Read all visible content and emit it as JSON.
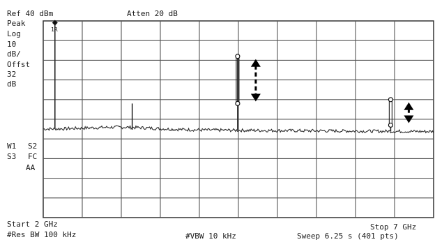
{
  "header": {
    "ref_level": "Ref 40 dBm",
    "attenuation": "Atten 20 dB"
  },
  "side_panel": {
    "detector": "Peak",
    "scale_type": "Log",
    "scale_value": "10",
    "scale_unit": "dB/",
    "offset_label": "Offst",
    "offset_value": "32",
    "offset_unit": "dB",
    "trace_w1": "W1",
    "trace_s2": "S2",
    "trace_s3": "S3",
    "trace_fc": "FC",
    "trace_aa": "AA"
  },
  "footer": {
    "start": "Start 2 GHz",
    "stop": "Stop 7 GHz",
    "res_bw": "#Res BW 100 kHz",
    "vbw": "#VBW 10 kHz",
    "sweep": "Sweep 6.25 s (401 pts)"
  },
  "marker": {
    "label": "1R"
  },
  "chart_data": {
    "type": "line",
    "x_unit": "GHz",
    "y_unit": "dBm",
    "xlim": [
      2,
      7
    ],
    "ylim": [
      -60,
      40
    ],
    "grid": true,
    "grid_divisions": {
      "x": 10,
      "y": 10
    },
    "noise_floor": -15,
    "peaks": [
      {
        "x": 2.15,
        "y": 38
      },
      {
        "x": 3.14,
        "y": -2
      },
      {
        "x": 4.49,
        "y": 22
      },
      {
        "x": 6.45,
        "y": -13
      }
    ],
    "harmonic_markers": [
      {
        "x": 4.49,
        "top": 22,
        "bottom": -2
      },
      {
        "x": 6.45,
        "top": 0,
        "bottom": -13
      }
    ],
    "color": "#2a2a2a"
  }
}
